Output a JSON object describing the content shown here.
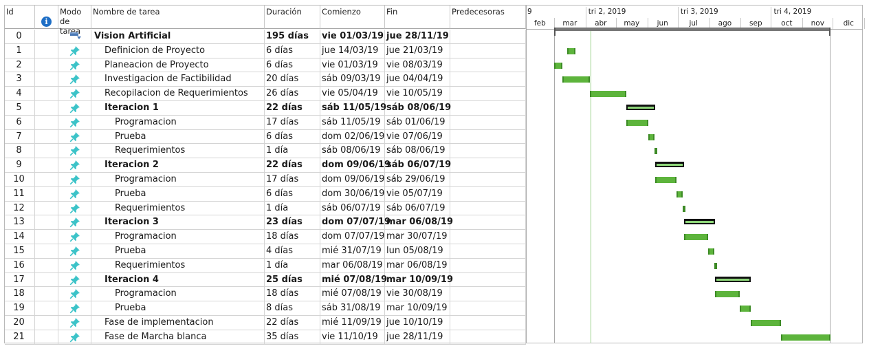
{
  "columns": {
    "id": "Id",
    "mode_line1": "Modo",
    "mode_line2": "de tarea",
    "name": "Nombre de tarea",
    "duration": "Duración",
    "start": "Comienzo",
    "end": "Fin",
    "predecessors": "Predecesoras"
  },
  "timeline": {
    "quarters": [
      "9",
      "tri 2, 2019",
      "tri 3, 2019",
      "tri 4, 2019"
    ],
    "months": [
      "feb",
      "mar",
      "abr",
      "may",
      "jun",
      "jul",
      "ago",
      "sep",
      "oct",
      "nov",
      "dic"
    ]
  },
  "tasks": [
    {
      "id": "0",
      "name": "Vision Artificial",
      "duration": "195 días",
      "start": "vie 01/03/19",
      "end": "jue 28/11/19",
      "bold": true,
      "indent": 0,
      "kind": "project",
      "mode_icon": "project-summary-icon",
      "bar": {
        "start": "2019-03-01",
        "end": "2019-11-28"
      }
    },
    {
      "id": "1",
      "name": "Definicion de Proyecto",
      "duration": "6 días",
      "start": "jue 14/03/19",
      "end": "jue 21/03/19",
      "bold": false,
      "indent": 1,
      "kind": "task",
      "mode_icon": "pin-icon",
      "bar": {
        "start": "2019-03-14",
        "end": "2019-03-21"
      }
    },
    {
      "id": "2",
      "name": "Planeacion de Proyecto",
      "duration": "6 días",
      "start": "vie 01/03/19",
      "end": "vie 08/03/19",
      "bold": false,
      "indent": 1,
      "kind": "task",
      "mode_icon": "pin-icon",
      "bar": {
        "start": "2019-03-01",
        "end": "2019-03-08"
      }
    },
    {
      "id": "3",
      "name": "Investigacion de Factibilidad",
      "duration": "20 días",
      "start": "sáb 09/03/19",
      "end": "jue 04/04/19",
      "bold": false,
      "indent": 1,
      "kind": "task",
      "mode_icon": "pin-icon",
      "bar": {
        "start": "2019-03-09",
        "end": "2019-04-04"
      }
    },
    {
      "id": "4",
      "name": "Recopilacion de Requerimientos",
      "duration": "26 días",
      "start": "vie 05/04/19",
      "end": "vie 10/05/19",
      "bold": false,
      "indent": 1,
      "kind": "task",
      "mode_icon": "pin-icon",
      "bar": {
        "start": "2019-04-05",
        "end": "2019-05-10"
      }
    },
    {
      "id": "5",
      "name": "Iteracion 1",
      "duration": "22 días",
      "start": "sáb 11/05/19",
      "end": "sáb 08/06/19",
      "bold": true,
      "indent": 1,
      "kind": "summary",
      "mode_icon": "pin-icon",
      "bar": {
        "start": "2019-05-11",
        "end": "2019-06-08"
      }
    },
    {
      "id": "6",
      "name": "Programacion",
      "duration": "17 días",
      "start": "sáb 11/05/19",
      "end": "sáb 01/06/19",
      "bold": false,
      "indent": 2,
      "kind": "task",
      "mode_icon": "pin-icon",
      "bar": {
        "start": "2019-05-11",
        "end": "2019-06-01"
      }
    },
    {
      "id": "7",
      "name": "Prueba",
      "duration": "6 días",
      "start": "dom 02/06/19",
      "end": "vie 07/06/19",
      "bold": false,
      "indent": 2,
      "kind": "task",
      "mode_icon": "pin-icon",
      "bar": {
        "start": "2019-06-02",
        "end": "2019-06-07"
      }
    },
    {
      "id": "8",
      "name": "Requerimientos",
      "duration": "1 día",
      "start": "sáb 08/06/19",
      "end": "sáb 08/06/19",
      "bold": false,
      "indent": 2,
      "kind": "task",
      "mode_icon": "pin-icon",
      "bar": {
        "start": "2019-06-08",
        "end": "2019-06-08"
      }
    },
    {
      "id": "9",
      "name": "Iteracion 2",
      "duration": "22 días",
      "start": "dom 09/06/19",
      "end": "sáb 06/07/19",
      "bold": true,
      "indent": 1,
      "kind": "summary",
      "mode_icon": "pin-icon",
      "bar": {
        "start": "2019-06-09",
        "end": "2019-07-06"
      }
    },
    {
      "id": "10",
      "name": "Programacion",
      "duration": "17 días",
      "start": "dom 09/06/19",
      "end": "sáb 29/06/19",
      "bold": false,
      "indent": 2,
      "kind": "task",
      "mode_icon": "pin-icon",
      "bar": {
        "start": "2019-06-09",
        "end": "2019-06-29"
      }
    },
    {
      "id": "11",
      "name": "Prueba",
      "duration": "6 días",
      "start": "dom 30/06/19",
      "end": "vie 05/07/19",
      "bold": false,
      "indent": 2,
      "kind": "task",
      "mode_icon": "pin-icon",
      "bar": {
        "start": "2019-06-30",
        "end": "2019-07-05"
      }
    },
    {
      "id": "12",
      "name": "Requerimientos",
      "duration": "1 día",
      "start": "sáb 06/07/19",
      "end": "sáb 06/07/19",
      "bold": false,
      "indent": 2,
      "kind": "task",
      "mode_icon": "pin-icon",
      "bar": {
        "start": "2019-07-06",
        "end": "2019-07-06"
      }
    },
    {
      "id": "13",
      "name": "Iteracion 3",
      "duration": "23 días",
      "start": "dom 07/07/19",
      "end": "mar 06/08/19",
      "bold": true,
      "indent": 1,
      "kind": "summary",
      "mode_icon": "pin-icon",
      "bar": {
        "start": "2019-07-07",
        "end": "2019-08-06"
      }
    },
    {
      "id": "14",
      "name": "Programacion",
      "duration": "18 días",
      "start": "dom 07/07/19",
      "end": "mar 30/07/19",
      "bold": false,
      "indent": 2,
      "kind": "task",
      "mode_icon": "pin-icon",
      "bar": {
        "start": "2019-07-07",
        "end": "2019-07-30"
      }
    },
    {
      "id": "15",
      "name": "Prueba",
      "duration": "4 días",
      "start": "mié 31/07/19",
      "end": "lun 05/08/19",
      "bold": false,
      "indent": 2,
      "kind": "task",
      "mode_icon": "pin-icon",
      "bar": {
        "start": "2019-07-31",
        "end": "2019-08-05"
      }
    },
    {
      "id": "16",
      "name": "Requerimientos",
      "duration": "1 día",
      "start": "mar 06/08/19",
      "end": "mar 06/08/19",
      "bold": false,
      "indent": 2,
      "kind": "task",
      "mode_icon": "pin-icon",
      "bar": {
        "start": "2019-08-06",
        "end": "2019-08-06"
      }
    },
    {
      "id": "17",
      "name": "Iteracion 4",
      "duration": "25 días",
      "start": "mié 07/08/19",
      "end": "mar 10/09/19",
      "bold": true,
      "indent": 1,
      "kind": "summary",
      "mode_icon": "pin-icon",
      "bar": {
        "start": "2019-08-07",
        "end": "2019-09-10"
      }
    },
    {
      "id": "18",
      "name": "Programacion",
      "duration": "18 días",
      "start": "mié 07/08/19",
      "end": "vie 30/08/19",
      "bold": false,
      "indent": 2,
      "kind": "task",
      "mode_icon": "pin-icon",
      "bar": {
        "start": "2019-08-07",
        "end": "2019-08-30"
      }
    },
    {
      "id": "19",
      "name": "Prueba",
      "duration": "8 días",
      "start": "sáb 31/08/19",
      "end": "mar 10/09/19",
      "bold": false,
      "indent": 2,
      "kind": "task",
      "mode_icon": "pin-icon",
      "bar": {
        "start": "2019-08-31",
        "end": "2019-09-10"
      }
    },
    {
      "id": "20",
      "name": "Fase de implementacion",
      "duration": "22 días",
      "start": "mié 11/09/19",
      "end": "jue 10/10/19",
      "bold": false,
      "indent": 1,
      "kind": "task",
      "mode_icon": "pin-icon",
      "bar": {
        "start": "2019-09-11",
        "end": "2019-10-10"
      }
    },
    {
      "id": "21",
      "name": "Fase de Marcha blanca",
      "duration": "35 días",
      "start": "vie 11/10/19",
      "end": "jue 28/11/19",
      "bold": false,
      "indent": 1,
      "kind": "task",
      "mode_icon": "pin-icon",
      "bar": {
        "start": "2019-10-11",
        "end": "2019-11-28"
      }
    }
  ],
  "colors": {
    "task_bar": "#5db43c",
    "task_bar_edge": "#3d8a26",
    "summary_fill": "#8fd77a",
    "summary_edge": "#111111",
    "project_bar": "#777777",
    "pin_icon": "#3cc3c8",
    "info_icon": "#1f6fc6",
    "today_line": "#9ad18b",
    "start_line": "#a9a9a9"
  }
}
